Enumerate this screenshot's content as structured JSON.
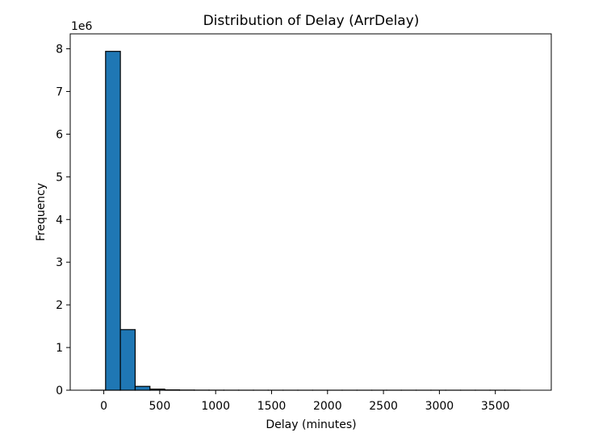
{
  "chart_data": {
    "type": "bar",
    "title": "Distribution of Delay (ArrDelay)",
    "xlabel": "Delay (minutes)",
    "ylabel": "Frequency",
    "y_offset_text": "1e6",
    "y_scale": 1000000,
    "xlim": [
      -300,
      4000
    ],
    "ylim": [
      0,
      8.35
    ],
    "xticks": [
      0,
      500,
      1000,
      1500,
      2000,
      2500,
      3000,
      3500
    ],
    "yticks": [
      0,
      1,
      2,
      3,
      4,
      5,
      6,
      7,
      8
    ],
    "bin_width": 132.2,
    "series": [
      {
        "bins": [
          {
            "x0": -116.1,
            "value": 0.0005
          },
          {
            "x0": 16.1,
            "value": 7.94
          },
          {
            "x0": 148.3,
            "value": 1.42
          },
          {
            "x0": 280.5,
            "value": 0.09
          },
          {
            "x0": 412.7,
            "value": 0.025
          },
          {
            "x0": 544.9,
            "value": 0.008
          },
          {
            "x0": 677.1,
            "value": 0.004
          },
          {
            "x0": 809.3,
            "value": 0.002
          },
          {
            "x0": 941.5,
            "value": 0.001
          },
          {
            "x0": 1073.7,
            "value": 0.0008
          },
          {
            "x0": 1205.9,
            "value": 0.0005
          },
          {
            "x0": 1338.1,
            "value": 0.0003
          },
          {
            "x0": 1470.3,
            "value": 0.0002
          },
          {
            "x0": 1602.5,
            "value": 0.0001
          },
          {
            "x0": 1734.7,
            "value": 0.0001
          },
          {
            "x0": 1866.9,
            "value": 0.0001
          },
          {
            "x0": 1999.1,
            "value": 0.0001
          },
          {
            "x0": 2131.3,
            "value": 0.0001
          },
          {
            "x0": 2263.5,
            "value": 0.0001
          },
          {
            "x0": 2395.7,
            "value": 0.0001
          },
          {
            "x0": 2527.9,
            "value": 0.0001
          },
          {
            "x0": 2660.1,
            "value": 0.0001
          },
          {
            "x0": 2792.3,
            "value": 0.0001
          },
          {
            "x0": 2924.5,
            "value": 0.0001
          },
          {
            "x0": 3056.7,
            "value": 0.0001
          },
          {
            "x0": 3188.9,
            "value": 0.0001
          },
          {
            "x0": 3321.1,
            "value": 0.0001
          },
          {
            "x0": 3453.3,
            "value": 0.0001
          },
          {
            "x0": 3585.5,
            "value": 0.0001
          }
        ]
      }
    ],
    "colors": {
      "bar": "#1f77b4",
      "edge": "#000000",
      "axes": "#000000",
      "background": "#ffffff"
    },
    "grid": false,
    "legend": "none"
  }
}
